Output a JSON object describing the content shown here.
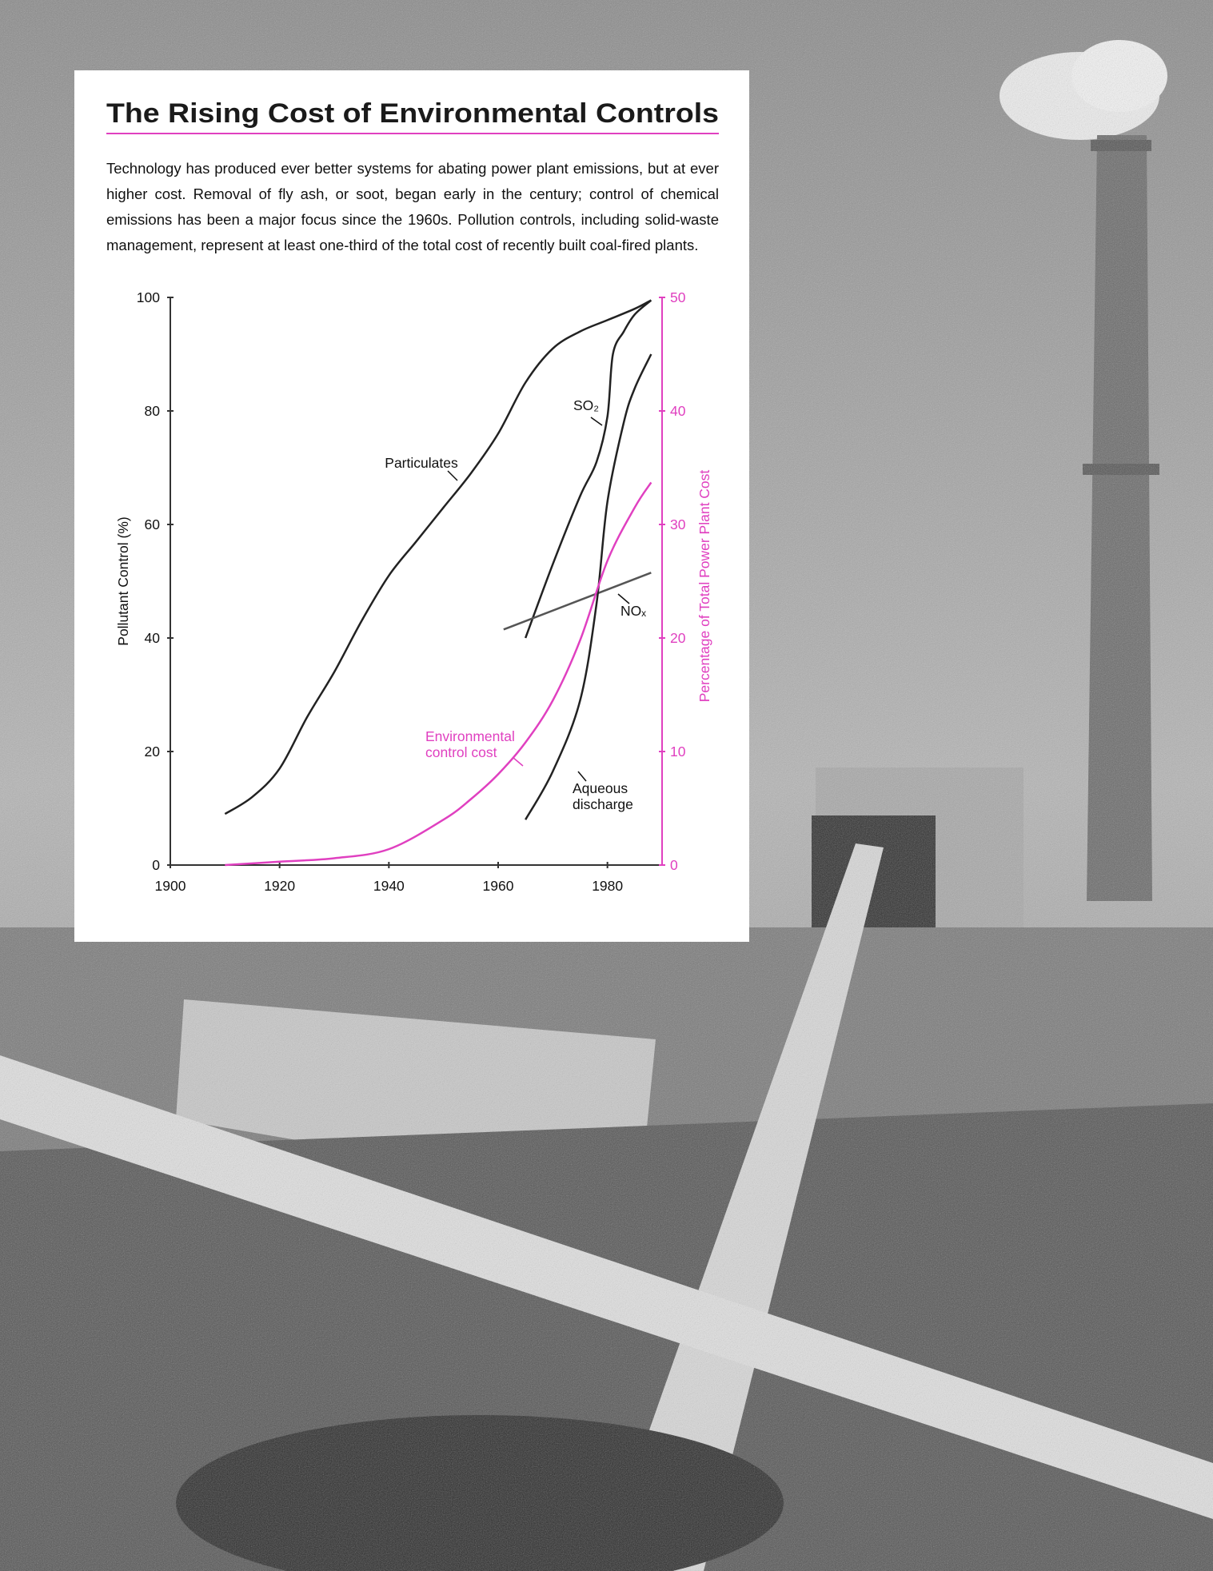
{
  "chart_data": {
    "type": "line",
    "title": "The Rising Cost of Environmental Controls",
    "subtitle": "Technology has produced ever better systems for abating power plant emissions, but at ever higher cost. Removal of fly ash, or soot, began early in the century; control of chemical emissions has been a major focus since the 1960s. Pollution controls, including solid-waste management, represent at least one-third of the total cost of recently built coal-fired plants.",
    "ylabel": "Pollutant Control (%)",
    "y2label": "Percentage of Total Power Plant Cost",
    "y2color": "#e040c0",
    "xlim": [
      1900,
      1990
    ],
    "xticks": [
      1900,
      1920,
      1940,
      1960,
      1980
    ],
    "ylim": [
      0,
      100
    ],
    "yticks": [
      0,
      20,
      40,
      60,
      80,
      100
    ],
    "y2lim": [
      0,
      50
    ],
    "y2ticks": [
      0,
      10,
      20,
      30,
      40,
      50
    ],
    "series": [
      {
        "name": "Particulates",
        "color": "#222222",
        "x": [
          1910,
          1915,
          1920,
          1925,
          1930,
          1935,
          1940,
          1945,
          1950,
          1955,
          1960,
          1965,
          1970,
          1975,
          1980,
          1985,
          1988
        ],
        "values": [
          9,
          12,
          17,
          26,
          34,
          43,
          51,
          57,
          63,
          69,
          76,
          85,
          91,
          94,
          96,
          98,
          99.5
        ]
      },
      {
        "name": "SO₂",
        "color": "#222222",
        "x": [
          1965,
          1970,
          1975,
          1978,
          1980,
          1981,
          1983,
          1985,
          1988
        ],
        "values": [
          40,
          53,
          65,
          71,
          79,
          90,
          94,
          97,
          99.5
        ]
      },
      {
        "name": "NOₓ",
        "color": "#555555",
        "x": [
          1961,
          1988
        ],
        "values": [
          41.5,
          51.5
        ]
      },
      {
        "name": "Aqueous discharge",
        "color": "#222222",
        "x": [
          1965,
          1970,
          1975,
          1978,
          1980,
          1983,
          1985,
          1988
        ],
        "values": [
          8,
          16.5,
          29,
          46,
          64,
          78,
          84,
          90
        ]
      },
      {
        "name": "Environmental control cost",
        "color": "#e040c0",
        "axis": "y2",
        "x": [
          1910,
          1920,
          1930,
          1940,
          1950,
          1955,
          1960,
          1965,
          1970,
          1975,
          1980,
          1985,
          1988
        ],
        "values": [
          0,
          0.3,
          0.6,
          1.4,
          4,
          5.8,
          8,
          10.8,
          14.5,
          19.8,
          26.8,
          31.5,
          33.7
        ]
      }
    ]
  }
}
